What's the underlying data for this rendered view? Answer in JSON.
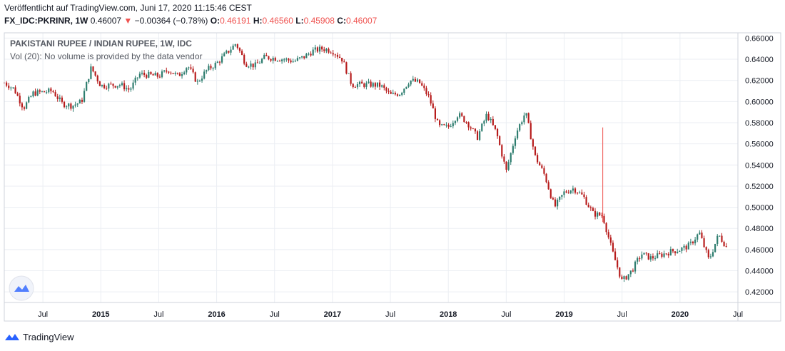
{
  "header": {
    "published": "Veröffentlicht auf TradingView.com, Juni 17, 2020 11:15:46 CEST",
    "symbol": "FX_IDC:PKRINR, 1W",
    "last": "0.46007",
    "change": "−0.00364 (−0.78%)",
    "o_label": "O:",
    "o_value": "0.46191",
    "h_label": "H:",
    "h_value": "0.46560",
    "l_label": "L:",
    "l_value": "0.45908",
    "c_label": "C:",
    "c_value": "0.46007"
  },
  "legend": {
    "title": "PAKISTANI RUPEE / INDIAN RUPEE, 1W, IDC",
    "volume_note": "Vol (20): No volume is provided by the data vendor"
  },
  "footer": {
    "brand": "TradingView"
  },
  "colors": {
    "up": "#26a69a",
    "down": "#ef5350",
    "candle_up": "#2e7d6f",
    "candle_down": "#b71c1c",
    "grid": "#ebeef3",
    "axis": "#787b86"
  },
  "chart_data": {
    "type": "candlestick",
    "ylim": [
      0.41,
      0.665
    ],
    "y_ticks": [
      "0.66000",
      "0.64000",
      "0.62000",
      "0.60000",
      "0.58000",
      "0.56000",
      "0.54000",
      "0.52000",
      "0.50000",
      "0.48000",
      "0.46000",
      "0.44000",
      "0.42000"
    ],
    "x_ticks": [
      "Jul",
      "2015",
      "Jul",
      "2016",
      "Jul",
      "2017",
      "Jul",
      "2018",
      "Jul",
      "2019",
      "Jul",
      "2020",
      "Jul"
    ],
    "x_tick_dates": [
      "2014-07",
      "2015-01",
      "2015-07",
      "2016-01",
      "2016-07",
      "2017-01",
      "2017-07",
      "2018-01",
      "2018-07",
      "2019-01",
      "2019-07",
      "2020-01",
      "2020-07"
    ],
    "x_range": [
      "2014-03",
      "2020-07"
    ],
    "close_path": [
      [
        "2014-03",
        0.618
      ],
      [
        "2014-04",
        0.612
      ],
      [
        "2014-05",
        0.594
      ],
      [
        "2014-06",
        0.608
      ],
      [
        "2014-08",
        0.61
      ],
      [
        "2014-09",
        0.598
      ],
      [
        "2014-10",
        0.596
      ],
      [
        "2014-11",
        0.6
      ],
      [
        "2014-12",
        0.632
      ],
      [
        "2015-01",
        0.615
      ],
      [
        "2015-03",
        0.616
      ],
      [
        "2015-04",
        0.611
      ],
      [
        "2015-05",
        0.626
      ],
      [
        "2015-07",
        0.624
      ],
      [
        "2015-08",
        0.63
      ],
      [
        "2015-09",
        0.624
      ],
      [
        "2015-10",
        0.634
      ],
      [
        "2015-11",
        0.618
      ],
      [
        "2015-12",
        0.63
      ],
      [
        "2016-01",
        0.636
      ],
      [
        "2016-03",
        0.655
      ],
      [
        "2016-04",
        0.636
      ],
      [
        "2016-05",
        0.634
      ],
      [
        "2016-06",
        0.642
      ],
      [
        "2016-08",
        0.64
      ],
      [
        "2016-09",
        0.638
      ],
      [
        "2016-10",
        0.642
      ],
      [
        "2016-11",
        0.648
      ],
      [
        "2016-12",
        0.65
      ],
      [
        "2017-01",
        0.648
      ],
      [
        "2017-02",
        0.64
      ],
      [
        "2017-03",
        0.616
      ],
      [
        "2017-05",
        0.616
      ],
      [
        "2017-06",
        0.615
      ],
      [
        "2017-07",
        0.606
      ],
      [
        "2017-08",
        0.608
      ],
      [
        "2017-09",
        0.62
      ],
      [
        "2017-10",
        0.618
      ],
      [
        "2017-11",
        0.604
      ],
      [
        "2017-12",
        0.576
      ],
      [
        "2018-01",
        0.576
      ],
      [
        "2018-02",
        0.588
      ],
      [
        "2018-03",
        0.58
      ],
      [
        "2018-04",
        0.566
      ],
      [
        "2018-05",
        0.588
      ],
      [
        "2018-06",
        0.57
      ],
      [
        "2018-07",
        0.534
      ],
      [
        "2018-08",
        0.57
      ],
      [
        "2018-09",
        0.59
      ],
      [
        "2018-10",
        0.548
      ],
      [
        "2018-11",
        0.53
      ],
      [
        "2018-12",
        0.5
      ],
      [
        "2019-01",
        0.514
      ],
      [
        "2019-02",
        0.518
      ],
      [
        "2019-03",
        0.51
      ],
      [
        "2019-04",
        0.494
      ],
      [
        "2019-05",
        0.492
      ],
      [
        "2019-06",
        0.458
      ],
      [
        "2019-07",
        0.43
      ],
      [
        "2019-08",
        0.44
      ],
      [
        "2019-09",
        0.456
      ],
      [
        "2019-10",
        0.452
      ],
      [
        "2019-11",
        0.455
      ],
      [
        "2019-12",
        0.458
      ],
      [
        "2020-01",
        0.46
      ],
      [
        "2020-02",
        0.464
      ],
      [
        "2020-03",
        0.476
      ],
      [
        "2020-04",
        0.45
      ],
      [
        "2020-05",
        0.474
      ],
      [
        "2020-06",
        0.46
      ]
    ],
    "spikes": [
      {
        "date": "2019-05",
        "high": 0.5755,
        "low": 0.486
      }
    ]
  }
}
